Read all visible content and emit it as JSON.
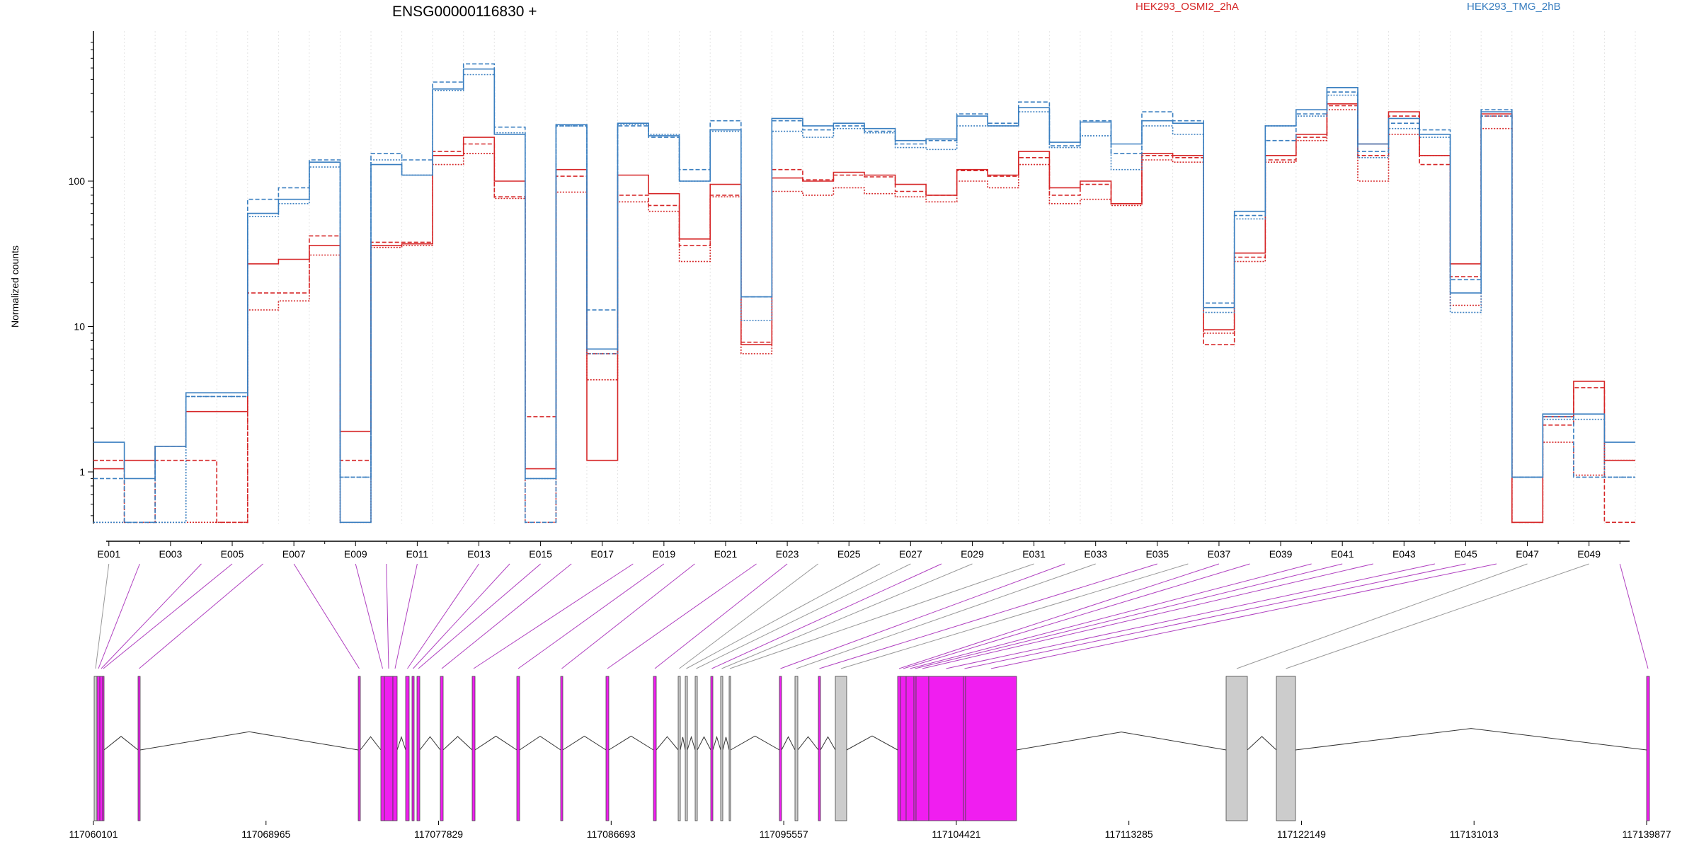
{
  "chart_data": {
    "type": "line",
    "title": "ENSG00000116830 +",
    "ylabel": "Normalized counts",
    "yscale": "log",
    "ylim": [
      0.45,
      800
    ],
    "grid": "vertical dotted per exon",
    "legend_position": "top",
    "legend": [
      {
        "name": "HEK293_OSMI2_2hA",
        "color": "#d62728"
      },
      {
        "name": "HEK293_TMG_2hB",
        "color": "#3a7fc0"
      }
    ],
    "y_ticks": [
      {
        "value": 1,
        "label": "1"
      },
      {
        "value": 10,
        "label": "10"
      },
      {
        "value": 100,
        "label": "100"
      }
    ],
    "exons": [
      "E001",
      "E002",
      "E003",
      "E004",
      "E005",
      "E006",
      "E007",
      "E008",
      "E009",
      "E010",
      "E011",
      "E012",
      "E013",
      "E014",
      "E015",
      "E016",
      "E017",
      "E018",
      "E019",
      "E020",
      "E021",
      "E022",
      "E023",
      "E024",
      "E025",
      "E026",
      "E027",
      "E028",
      "E029",
      "E030",
      "E031",
      "E032",
      "E033",
      "E034",
      "E035",
      "E036",
      "E037",
      "E038",
      "E039",
      "E040",
      "E041",
      "E042",
      "E043",
      "E044",
      "E045",
      "E046",
      "E047",
      "E048",
      "E049",
      "E050"
    ],
    "exon_tick_labels": [
      "E001",
      "E003",
      "E005",
      "E007",
      "E009",
      "E011",
      "E013",
      "E015",
      "E017",
      "E019",
      "E021",
      "E023",
      "E025",
      "E027",
      "E029",
      "E031",
      "E033",
      "E035",
      "E037",
      "E039",
      "E041",
      "E043",
      "E045",
      "E047",
      "E049"
    ],
    "series": [
      {
        "group": "HEK293_OSMI2_2hA",
        "style": "solid",
        "values": [
          1.05,
          1.2,
          1.5,
          2.6,
          2.6,
          27,
          29,
          36,
          1.9,
          36,
          37,
          150,
          200,
          100,
          1.05,
          120,
          1.2,
          110,
          82,
          40,
          95,
          7.5,
          105,
          100,
          115,
          110,
          95,
          80,
          120,
          110,
          160,
          90,
          100,
          70,
          155,
          150,
          9.5,
          32,
          150,
          210,
          340,
          180,
          300,
          150,
          27,
          290,
          0.45,
          2.4,
          4.2,
          1.2
        ]
      },
      {
        "group": "HEK293_OSMI2_2hA",
        "style": "dashed",
        "values": [
          1.2,
          0.45,
          1.2,
          1.2,
          0.45,
          17,
          17,
          42,
          1.2,
          38,
          38,
          160,
          180,
          78,
          2.4,
          108,
          6.5,
          80,
          68,
          36,
          80,
          7.8,
          120,
          102,
          110,
          107,
          85,
          80,
          118,
          108,
          145,
          80,
          95,
          70,
          150,
          145,
          7.5,
          30,
          140,
          200,
          330,
          150,
          280,
          130,
          22,
          280,
          0.45,
          2.1,
          3.8,
          0.45
        ]
      },
      {
        "group": "HEK293_OSMI2_2hA",
        "style": "dotted",
        "values": [
          0.45,
          0.45,
          0.45,
          0.45,
          0.45,
          13,
          15,
          31,
          0.45,
          35,
          36,
          130,
          155,
          76,
          0.45,
          84,
          4.3,
          72,
          62,
          28,
          78,
          6.5,
          85,
          80,
          90,
          82,
          78,
          72,
          100,
          90,
          130,
          70,
          75,
          68,
          140,
          135,
          9,
          28,
          135,
          190,
          310,
          100,
          210,
          150,
          14,
          230,
          0.45,
          1.6,
          0.95,
          1.2
        ]
      },
      {
        "group": "HEK293_TMG_2hB",
        "style": "solid",
        "values": [
          1.6,
          0.9,
          1.5,
          3.5,
          3.5,
          60,
          75,
          135,
          0.45,
          130,
          110,
          430,
          590,
          210,
          0.9,
          245,
          7,
          250,
          205,
          100,
          225,
          16,
          270,
          240,
          250,
          230,
          190,
          195,
          280,
          240,
          320,
          185,
          255,
          180,
          260,
          250,
          13.5,
          62,
          240,
          310,
          440,
          180,
          270,
          210,
          17,
          300,
          0.92,
          2.5,
          2.5,
          1.6
        ]
      },
      {
        "group": "HEK293_TMG_2hB",
        "style": "dashed",
        "values": [
          0.9,
          0.45,
          1.5,
          3.3,
          3.3,
          75,
          90,
          140,
          0.92,
          155,
          140,
          480,
          640,
          235,
          0.45,
          240,
          13,
          240,
          200,
          120,
          260,
          16,
          260,
          225,
          240,
          220,
          180,
          190,
          290,
          250,
          350,
          175,
          260,
          155,
          300,
          260,
          14.5,
          58,
          190,
          290,
          410,
          160,
          250,
          225,
          21,
          310,
          0.92,
          2.4,
          0.92,
          0.92
        ]
      },
      {
        "group": "HEK293_TMG_2hB",
        "style": "dotted",
        "values": [
          0.45,
          0.45,
          0.45,
          3.3,
          3.3,
          57,
          70,
          125,
          0.92,
          140,
          110,
          420,
          540,
          215,
          0.9,
          240,
          6.5,
          245,
          210,
          100,
          220,
          11,
          220,
          200,
          230,
          215,
          170,
          165,
          240,
          240,
          300,
          170,
          205,
          120,
          240,
          210,
          12.5,
          55,
          240,
          280,
          390,
          145,
          230,
          200,
          12.5,
          280,
          0.92,
          2.3,
          2.3,
          0.92
        ]
      }
    ],
    "gene_model": {
      "coord_ticks": [
        "117060101",
        "117068965",
        "117077829",
        "117086693",
        "117095557",
        "117104421",
        "117113285",
        "117122149",
        "117131013",
        "117139877"
      ],
      "exon_colors": {
        "differential": "#f01ef0",
        "normal": "#cccccc"
      }
    }
  }
}
